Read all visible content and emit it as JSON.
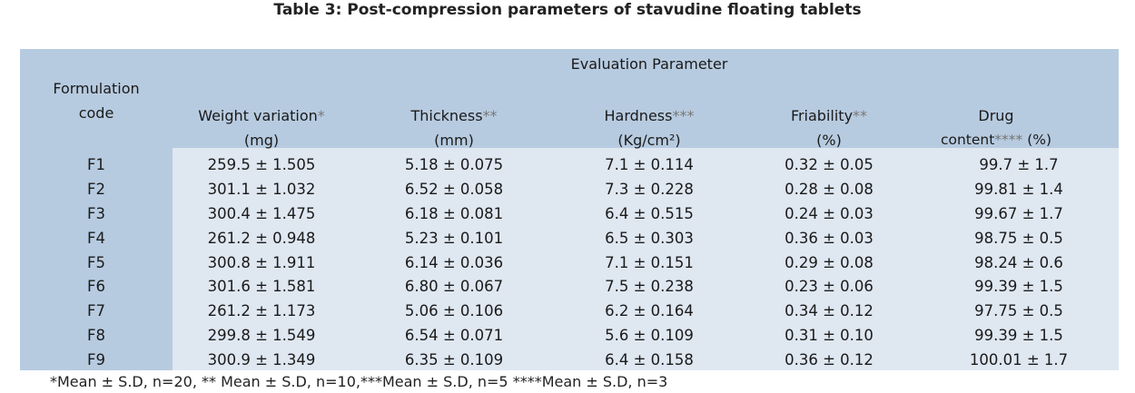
{
  "title": "Table 3: Post-compression parameters of stavudine floating tablets",
  "header": {
    "group": "Evaluation Parameter",
    "code_line1": "Formulation",
    "code_line2": "code",
    "cols": [
      {
        "l1": "Weight variation",
        "s1": "*",
        "l2": "(mg)",
        "s2": ""
      },
      {
        "l1": "Thickness",
        "s1": "**",
        "l2": "(mm)",
        "s2": ""
      },
      {
        "l1": "Hardness",
        "s1": "***",
        "l2": "(Kg/cm²)",
        "s2": ""
      },
      {
        "l1": "Friability",
        "s1": "**",
        "l2": "(%)",
        "s2": ""
      },
      {
        "l1": "Drug",
        "s1": "",
        "l2": "content",
        "s2": "****",
        "l3": " (%)"
      }
    ]
  },
  "rows": [
    {
      "code": "F1",
      "c": [
        "259.5 ± 1.505",
        "5.18 ± 0.075",
        "7.1 ± 0.114",
        "0.32 ± 0.05",
        "99.7 ± 1.7"
      ]
    },
    {
      "code": "F2",
      "c": [
        "301.1 ± 1.032",
        "6.52 ± 0.058",
        "7.3 ± 0.228",
        "0.28 ± 0.08",
        "99.81 ± 1.4"
      ]
    },
    {
      "code": "F3",
      "c": [
        "300.4 ± 1.475",
        "6.18 ± 0.081",
        "6.4 ± 0.515",
        "0.24 ± 0.03",
        "99.67 ± 1.7"
      ]
    },
    {
      "code": "F4",
      "c": [
        "261.2 ± 0.948",
        "5.23 ± 0.101",
        "6.5 ± 0.303",
        "0.36 ± 0.03",
        "98.75 ± 0.5"
      ]
    },
    {
      "code": "F5",
      "c": [
        "300.8 ± 1.911",
        "6.14 ± 0.036",
        "7.1 ± 0.151",
        "0.29 ± 0.08",
        "98.24 ± 0.6"
      ]
    },
    {
      "code": "F6",
      "c": [
        "301.6 ± 1.581",
        "6.80 ± 0.067",
        "7.5 ± 0.238",
        "0.23 ± 0.06",
        "99.39 ± 1.5"
      ]
    },
    {
      "code": "F7",
      "c": [
        "261.2 ± 1.173",
        "5.06 ± 0.106",
        "6.2 ± 0.164",
        "0.34 ± 0.12",
        "97.75 ± 0.5"
      ]
    },
    {
      "code": "F8",
      "c": [
        "299.8 ± 1.549",
        "6.54 ± 0.071",
        "5.6 ± 0.109",
        "0.31 ± 0.10",
        "99.39 ± 1.5"
      ]
    },
    {
      "code": "F9",
      "c": [
        "300.9 ± 1.349",
        "6.35 ± 0.109",
        "6.4 ± 0.158",
        "0.36 ± 0.12",
        "100.01 ± 1.7"
      ]
    }
  ],
  "footnote": "*Mean ± S.D, n=20, ** Mean ± S.D, n=10,***Mean ± S.D, n=5 ****Mean ± S.D, n=3",
  "colors": {
    "header_bg": "#b7cbe0",
    "data_bg": "#dfe7f1"
  }
}
